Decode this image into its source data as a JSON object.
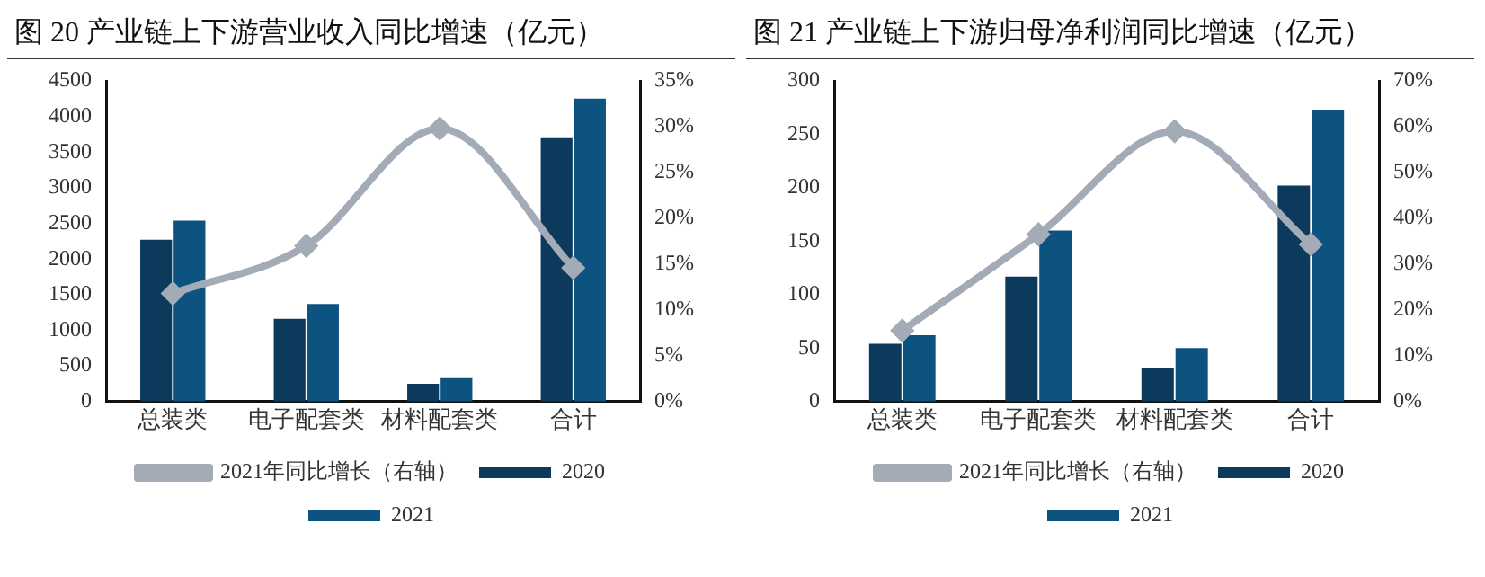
{
  "chart_data": [
    {
      "type": "bar",
      "title": "图 20 产业链上下游营业收入同比增速（亿元）",
      "categories": [
        "总装类",
        "电子配套类",
        "材料配套类",
        "合计"
      ],
      "series": [
        {
          "name": "2020",
          "color": "#0b3a5c",
          "values": [
            2270,
            1160,
            250,
            3710
          ]
        },
        {
          "name": "2021",
          "color": "#0d5380",
          "values": [
            2540,
            1370,
            330,
            4250
          ]
        },
        {
          "name": "2021年同比增长（右轴）",
          "type": "line",
          "axis": "y2",
          "color": "#a3abb6",
          "values": [
            11.8,
            17.0,
            29.8,
            14.6
          ]
        }
      ],
      "ylim": [
        0,
        4500
      ],
      "yticks": [
        0,
        500,
        1000,
        1500,
        2000,
        2500,
        3000,
        3500,
        4000,
        4500
      ],
      "y2lim": [
        0,
        35
      ],
      "y2ticks": [
        {
          "value": 0,
          "label": "0%"
        },
        {
          "value": 5,
          "label": "5%"
        },
        {
          "value": 10,
          "label": "10%"
        },
        {
          "value": 15,
          "label": "15%"
        },
        {
          "value": 20,
          "label": "20%"
        },
        {
          "value": 25,
          "label": "25%"
        },
        {
          "value": 30,
          "label": "30%"
        },
        {
          "value": 35,
          "label": "35%"
        }
      ],
      "grid": false,
      "legend": "bottom",
      "marker": "diamond"
    },
    {
      "type": "bar",
      "title": "图 21 产业链上下游归母净利润同比增速（亿元）",
      "categories": [
        "总装类",
        "电子配套类",
        "材料配套类",
        "合计"
      ],
      "series": [
        {
          "name": "2020",
          "color": "#0b3a5c",
          "values": [
            54,
            117,
            31,
            202
          ]
        },
        {
          "name": "2021",
          "color": "#0d5380",
          "values": [
            62,
            160,
            50,
            273
          ]
        },
        {
          "name": "2021年同比增长（右轴）",
          "type": "line",
          "axis": "y2",
          "color": "#a3abb6",
          "values": [
            15.5,
            36.5,
            59.0,
            34.3
          ]
        }
      ],
      "ylim": [
        0,
        300
      ],
      "yticks": [
        0,
        50,
        100,
        150,
        200,
        250,
        300
      ],
      "y2lim": [
        0,
        70
      ],
      "y2ticks": [
        {
          "value": 0,
          "label": "0%"
        },
        {
          "value": 10,
          "label": "10%"
        },
        {
          "value": 20,
          "label": "20%"
        },
        {
          "value": 30,
          "label": "30%"
        },
        {
          "value": 40,
          "label": "40%"
        },
        {
          "value": 50,
          "label": "50%"
        },
        {
          "value": 60,
          "label": "60%"
        },
        {
          "value": 70,
          "label": "70%"
        }
      ],
      "grid": false,
      "legend": "bottom",
      "marker": "diamond"
    }
  ]
}
